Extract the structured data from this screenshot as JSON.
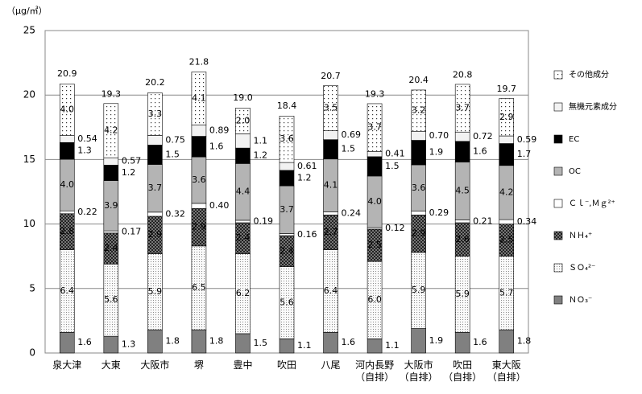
{
  "chart_data": {
    "type": "stacked_bar",
    "y_label": "（μg/㎥）",
    "categories": [
      "泉大津",
      "大東",
      "大阪市",
      "堺",
      "豊中",
      "吹田",
      "八尾",
      "河内長野\n（自排）",
      "大阪市\n（自排）",
      "吹田\n（自排）",
      "東大阪\n（自排）"
    ],
    "ylim": [
      0,
      25
    ],
    "yticks": [
      0,
      5,
      10,
      15,
      20,
      25
    ],
    "grid": true,
    "series": [
      {
        "name": "ＮＯ₃⁻",
        "color": "#808080",
        "values": [
          1.6,
          1.3,
          1.8,
          1.8,
          1.5,
          1.1,
          1.6,
          1.1,
          1.9,
          1.6,
          1.8
        ],
        "value_labels": [
          "1.6",
          "1.3",
          "1.8",
          "1.8",
          "1.5",
          "1.1",
          "1.6",
          "1.1",
          "1.9",
          "1.6",
          "1.8"
        ]
      },
      {
        "name": "ＳＯ₄²⁻",
        "color": "#e6e6e6",
        "hatch": "dots-fine",
        "values": [
          6.4,
          5.6,
          5.9,
          6.5,
          6.2,
          5.6,
          6.4,
          6.0,
          5.9,
          5.9,
          5.7
        ],
        "value_labels": [
          "6.4",
          "5.6",
          "5.9",
          "6.5",
          "6.2",
          "5.6",
          "6.4",
          "6.0",
          "5.9",
          "5.9",
          "5.7"
        ]
      },
      {
        "name": "ＮＨ₄⁺",
        "color": "#333333",
        "hatch": "cross",
        "values": [
          2.8,
          2.4,
          2.9,
          2.9,
          2.4,
          2.4,
          2.7,
          2.5,
          2.9,
          2.6,
          2.5
        ],
        "value_labels": [
          "2.8",
          "2.4",
          "2.9",
          "2.9",
          "2.4",
          "2.4",
          "2.7",
          "2.5",
          "2.9",
          "2.6",
          "2.5"
        ]
      },
      {
        "name": "Ｃｌ⁻,Ｍｇ²⁺",
        "color": "#ffffff",
        "values": [
          0.22,
          0.17,
          0.32,
          0.4,
          0.19,
          0.16,
          0.24,
          0.12,
          0.29,
          0.21,
          0.34
        ],
        "value_labels": [
          "0.22",
          "0.17",
          "0.32",
          "0.40",
          "0.19",
          "0.16",
          "0.24",
          "0.12",
          "0.29",
          "0.21",
          "0.34"
        ]
      },
      {
        "name": "OC",
        "color": "#b4b4b4",
        "values": [
          4.0,
          3.9,
          3.7,
          3.6,
          4.4,
          3.7,
          4.1,
          4.0,
          3.6,
          4.5,
          4.2
        ],
        "value_labels": [
          "4.0",
          "3.9",
          "3.7",
          "3.6",
          "4.4",
          "3.7",
          "4.1",
          "4.0",
          "3.6",
          "4.5",
          "4.2"
        ]
      },
      {
        "name": "EC",
        "color": "#000000",
        "values": [
          1.3,
          1.2,
          1.5,
          1.6,
          1.2,
          1.2,
          1.5,
          1.5,
          1.9,
          1.6,
          1.7
        ],
        "value_labels": [
          "1.3",
          "1.2",
          "1.5",
          "1.6",
          "1.2",
          "1.2",
          "1.5",
          "1.5",
          "1.9",
          "1.6",
          "1.7"
        ]
      },
      {
        "name": "無機元素成分",
        "color": "#f2f2f2",
        "values": [
          0.54,
          0.57,
          0.75,
          0.89,
          1.1,
          0.61,
          0.69,
          0.41,
          0.7,
          0.72,
          0.59
        ],
        "value_labels": [
          "0.54",
          "0.57",
          "0.75",
          "0.89",
          "1.1",
          "0.61",
          "0.69",
          "0.41",
          "0.70",
          "0.72",
          "0.59"
        ]
      },
      {
        "name": "その他成分",
        "color": "#ffffff",
        "hatch": "dots-sparse",
        "values": [
          4.0,
          4.2,
          3.3,
          4.1,
          2.0,
          3.6,
          3.5,
          3.7,
          3.2,
          3.7,
          2.9
        ],
        "value_labels": [
          "4.0",
          "4.2",
          "3.3",
          "4.1",
          "2.0",
          "3.6",
          "3.5",
          "3.7",
          "3.2",
          "3.7",
          "2.9"
        ]
      }
    ],
    "totals": {
      "values": [
        20.9,
        19.3,
        20.2,
        21.8,
        19.0,
        18.4,
        20.7,
        19.3,
        20.4,
        20.8,
        19.7
      ],
      "value_labels": [
        "20.9",
        "19.3",
        "20.2",
        "21.8",
        "19.0",
        "18.4",
        "20.7",
        "19.3",
        "20.4",
        "20.8",
        "19.7"
      ]
    }
  }
}
